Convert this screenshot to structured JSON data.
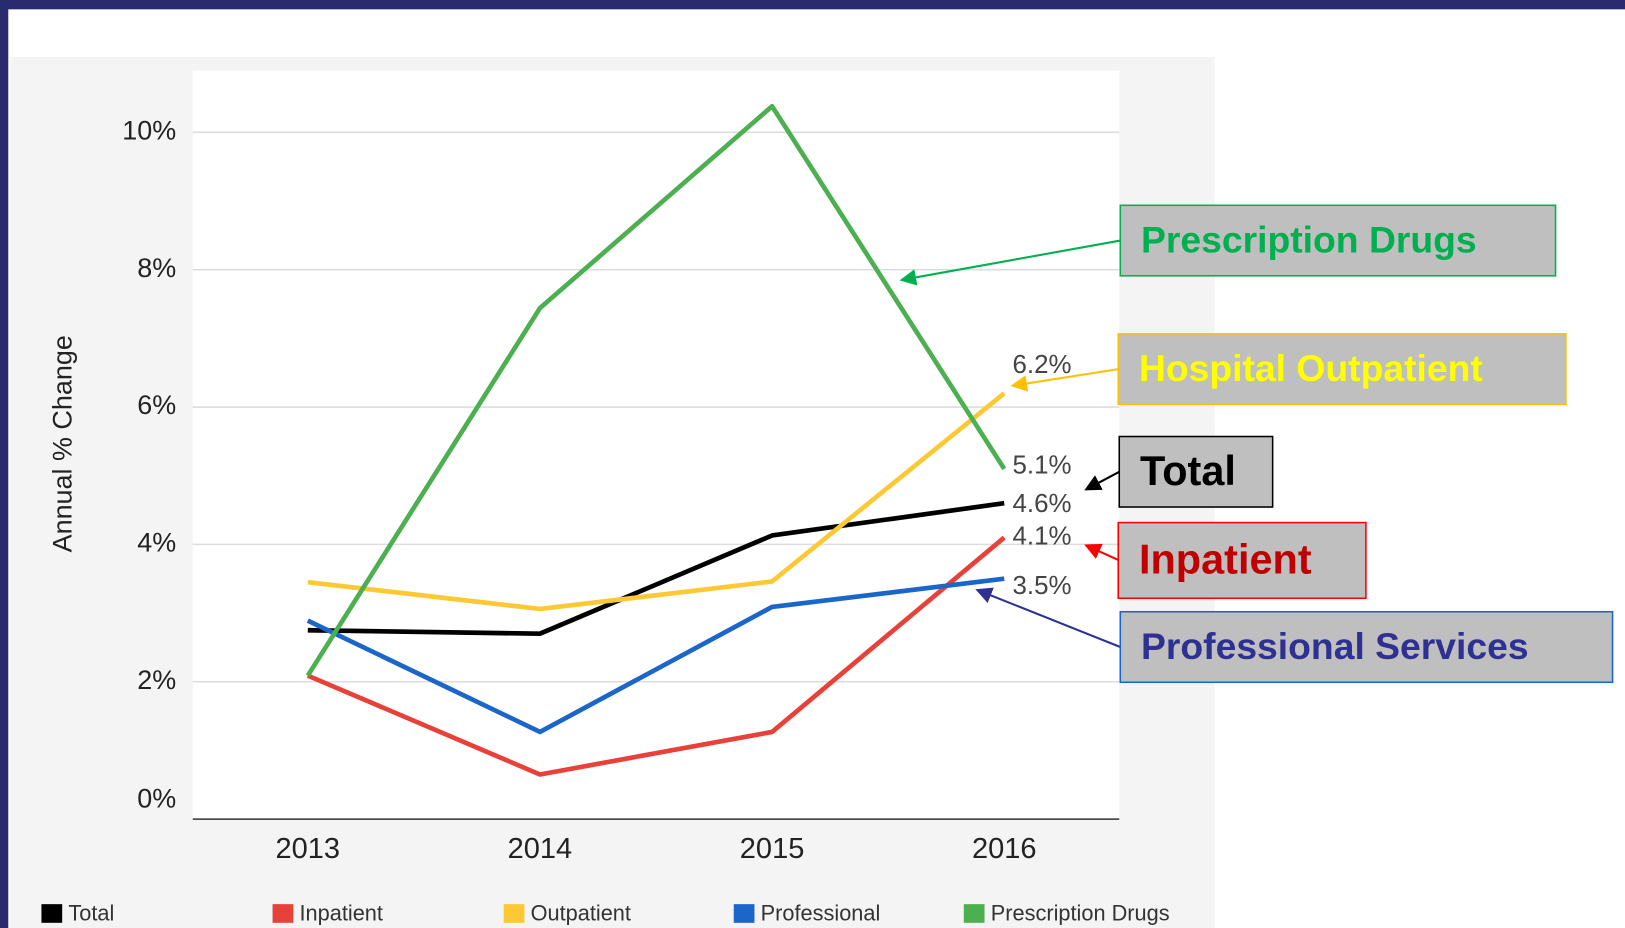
{
  "chart_data": {
    "type": "line",
    "y_label": "Annual % Change",
    "categories": [
      "2013",
      "2014",
      "2015",
      "2016"
    ],
    "series": [
      {
        "name": "Total",
        "color": "#000000",
        "values": [
          2.75,
          2.7,
          4.13,
          4.6
        ],
        "value_labels": [
          null,
          null,
          null,
          "4.6%"
        ]
      },
      {
        "name": "Inpatient",
        "color": "#e8413a",
        "values": [
          2.09,
          0.65,
          1.27,
          4.1
        ],
        "value_labels": [
          null,
          null,
          null,
          "4.1%"
        ]
      },
      {
        "name": "Outpatient",
        "color": "#fcc934",
        "values": [
          3.45,
          3.06,
          3.46,
          6.2
        ],
        "value_labels": [
          null,
          null,
          null,
          "6.2%"
        ]
      },
      {
        "name": "Professional",
        "color": "#1b66c9",
        "values": [
          2.89,
          1.27,
          3.09,
          3.5
        ],
        "value_labels": [
          null,
          null,
          null,
          "3.5%"
        ]
      },
      {
        "name": "Prescription Drugs",
        "color": "#4caf50",
        "values": [
          2.09,
          7.44,
          10.38,
          5.1
        ],
        "value_labels": [
          null,
          null,
          null,
          "5.1%"
        ]
      }
    ],
    "ylim": [
      0,
      10.9
    ],
    "yticks": [
      {
        "value": 0,
        "label": "0%"
      },
      {
        "value": 2,
        "label": "2%"
      },
      {
        "value": 4,
        "label": "4%"
      },
      {
        "value": 6,
        "label": "6%"
      },
      {
        "value": 8,
        "label": "8%"
      },
      {
        "value": 10,
        "label": "10%"
      }
    ],
    "grid": true,
    "legend": "bottom",
    "annotations": [
      {
        "text": "Prescription Drugs",
        "color": "#00b050",
        "border": "#00b050"
      },
      {
        "text": "Hospital Outpatient",
        "color": "#ffff00",
        "border": "#ffc000"
      },
      {
        "text": "Total",
        "color": "#000000",
        "border": "#000000"
      },
      {
        "text": "Inpatient",
        "color": "#c00000",
        "border": "#ff0000"
      },
      {
        "text": "Professional Services",
        "color": "#2e3192",
        "border": "#1b66c9"
      }
    ]
  }
}
